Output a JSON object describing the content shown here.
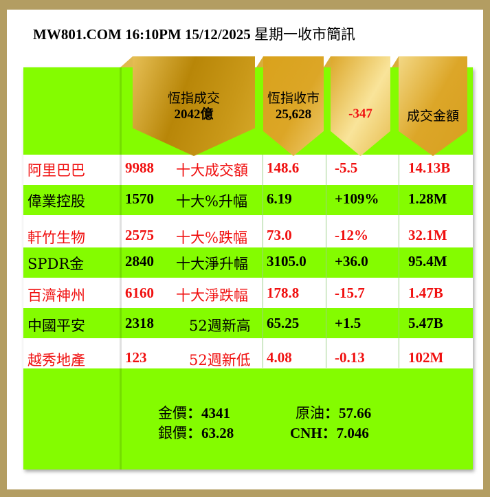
{
  "title": {
    "brand": "MW801.COM 16:10PM  15/12/2025",
    "suffix": "星期一收市簡訊"
  },
  "headers": {
    "turnover_label": "恆指成交",
    "turnover_value": "2042億",
    "close_label": "恆指收市",
    "close_value": "25,628",
    "change_value": "-347",
    "amount_label": "成交金額"
  },
  "rows": [
    {
      "name": "阿里巴巴",
      "code": "9988",
      "category": "十大成交額",
      "price": "148.6",
      "change": "-5.5",
      "amount": "14.13B",
      "color": "red"
    },
    {
      "name": "偉業控股",
      "code": "1570",
      "category": "十大%升幅",
      "price": "6.19",
      "change": "+109%",
      "amount": "1.28M",
      "color": "black"
    },
    {
      "name": "軒竹生物",
      "code": "2575",
      "category": "十大%跌幅",
      "price": "73.0",
      "change": "-12%",
      "amount": "32.1M",
      "color": "red"
    },
    {
      "name": "SPDR金",
      "code": "2840",
      "category": "十大淨升幅",
      "price": "3105.0",
      "change": "+36.0",
      "amount": "95.4M",
      "color": "black"
    },
    {
      "name": "百濟神州",
      "code": "6160",
      "category": "十大淨跌幅",
      "price": "178.8",
      "change": "-15.7",
      "amount": "1.47B",
      "color": "red"
    },
    {
      "name": "中國平安",
      "code": "2318",
      "category": "52週新高",
      "price": "65.25",
      "change": "+1.5",
      "amount": "5.47B",
      "color": "black"
    },
    {
      "name": "越秀地產",
      "code": "123",
      "category": "52週新低",
      "price": "4.08",
      "change": "-0.13",
      "amount": "102M",
      "color": "red"
    }
  ],
  "commodities": {
    "gold_label": "金價",
    "gold_value": "：4341",
    "oil_label": "原油",
    "oil_value": "：57.66",
    "silver_label": "銀價",
    "silver_value": "：63.28",
    "cnh_label": "CNH",
    "cnh_value": "：7.046"
  },
  "colors": {
    "green": "#84fc00",
    "red": "#f01010",
    "gold": "#c99a1e",
    "frame": "#b39d62"
  }
}
